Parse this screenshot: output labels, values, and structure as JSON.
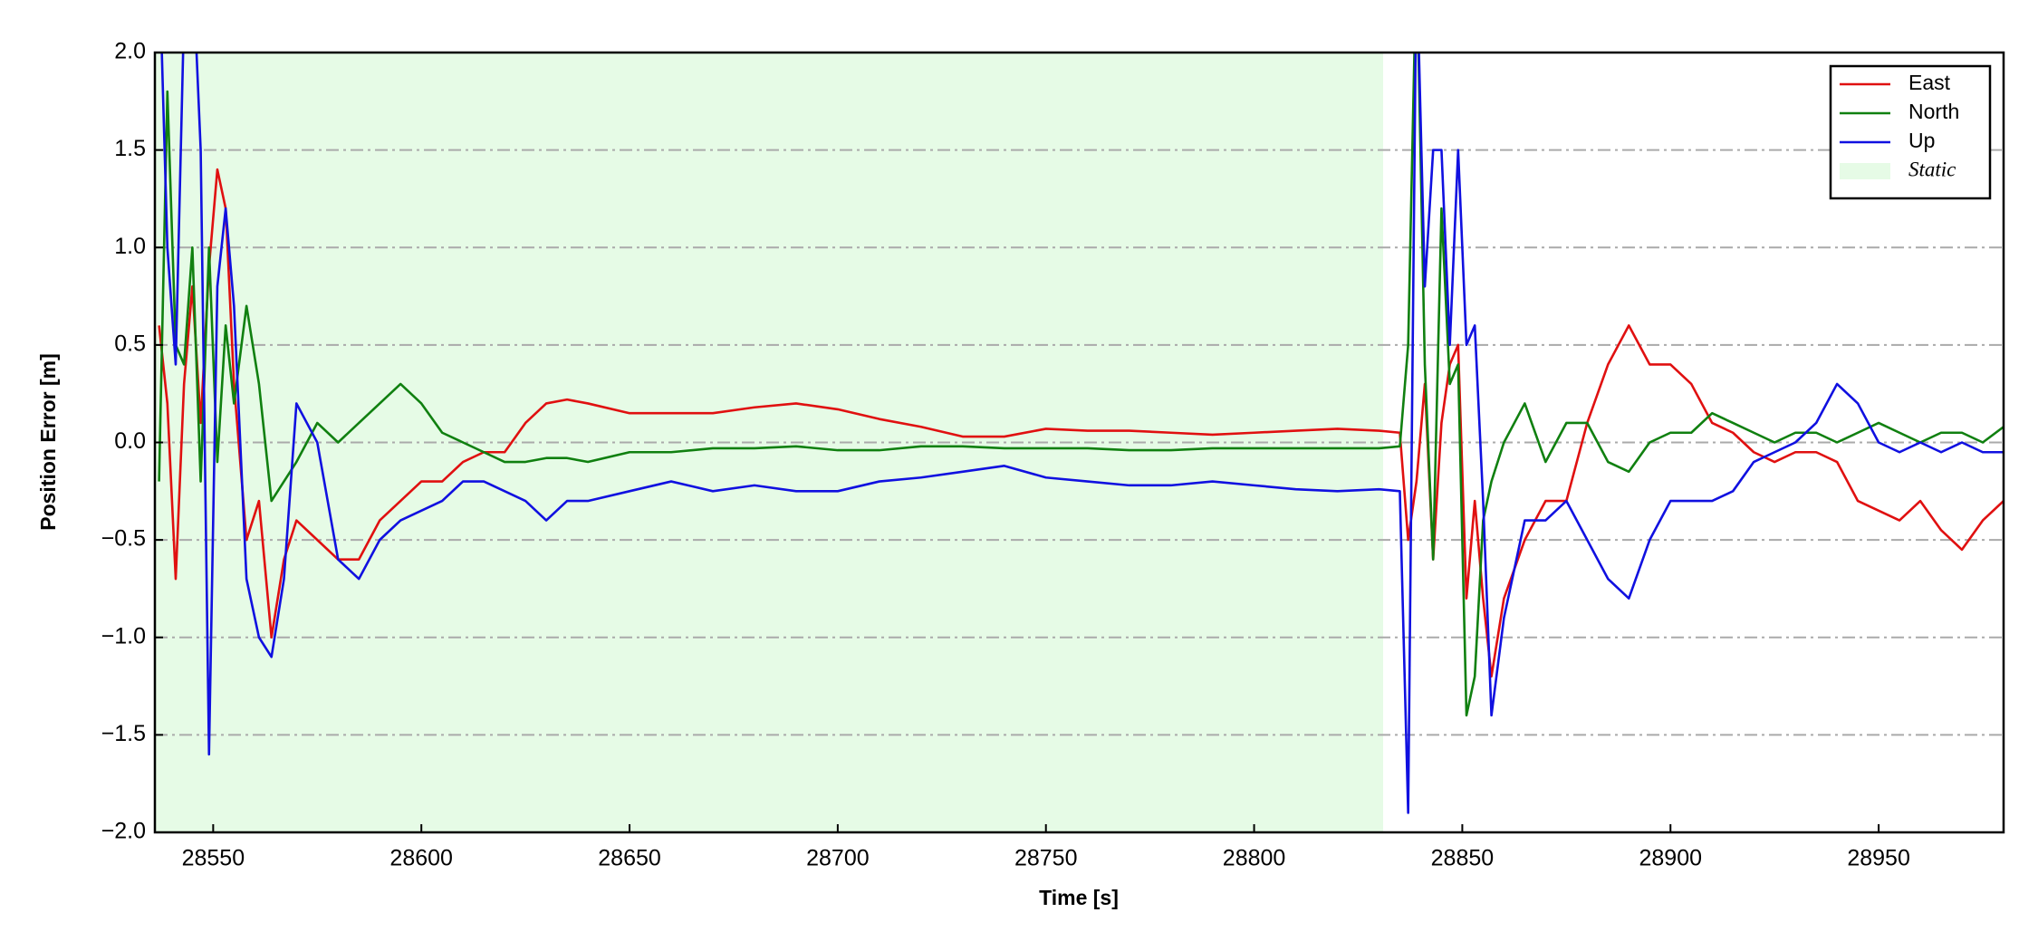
{
  "chart_data": {
    "type": "line",
    "xlabel": "Time [s]",
    "ylabel": "Position Error [m]",
    "x": [
      28537,
      28539,
      28541,
      28543,
      28545,
      28547,
      28549,
      28551,
      28553,
      28555,
      28558,
      28561,
      28564,
      28567,
      28570,
      28575,
      28580,
      28585,
      28590,
      28595,
      28600,
      28605,
      28610,
      28615,
      28620,
      28625,
      28630,
      28635,
      28640,
      28650,
      28660,
      28670,
      28680,
      28690,
      28700,
      28710,
      28720,
      28730,
      28740,
      28750,
      28760,
      28770,
      28780,
      28790,
      28800,
      28810,
      28820,
      28830,
      28835,
      28837,
      28839,
      28841,
      28843,
      28845,
      28847,
      28849,
      28851,
      28853,
      28855,
      28857,
      28860,
      28865,
      28870,
      28875,
      28880,
      28885,
      28890,
      28895,
      28900,
      28905,
      28910,
      28915,
      28920,
      28925,
      28930,
      28935,
      28940,
      28945,
      28950,
      28955,
      28960,
      28965,
      28970,
      28975,
      28980
    ],
    "series": [
      {
        "name": "East",
        "color": "#e01010",
        "values": [
          0.6,
          0.2,
          -0.7,
          0.3,
          0.8,
          0.1,
          0.9,
          1.4,
          1.2,
          0.3,
          -0.5,
          -0.3,
          -1.0,
          -0.6,
          -0.4,
          -0.5,
          -0.6,
          -0.6,
          -0.4,
          -0.3,
          -0.2,
          -0.2,
          -0.1,
          -0.05,
          -0.05,
          0.1,
          0.2,
          0.22,
          0.2,
          0.15,
          0.15,
          0.15,
          0.18,
          0.2,
          0.17,
          0.12,
          0.08,
          0.03,
          0.03,
          0.07,
          0.06,
          0.06,
          0.05,
          0.04,
          0.05,
          0.06,
          0.07,
          0.06,
          0.05,
          -0.5,
          -0.2,
          0.3,
          -0.6,
          0.1,
          0.4,
          0.5,
          -0.8,
          -0.3,
          -0.8,
          -1.2,
          -0.8,
          -0.5,
          -0.3,
          -0.3,
          0.1,
          0.4,
          0.6,
          0.4,
          0.4,
          0.3,
          0.1,
          0.05,
          -0.05,
          -0.1,
          -0.05,
          -0.05,
          -0.1,
          -0.3,
          -0.35,
          -0.4,
          -0.3,
          -0.45,
          -0.55,
          -0.4,
          -0.3
        ]
      },
      {
        "name": "North",
        "color": "#108010",
        "values": [
          -0.2,
          1.8,
          0.5,
          0.4,
          1.0,
          -0.2,
          1.0,
          -0.1,
          0.6,
          0.2,
          0.7,
          0.3,
          -0.3,
          -0.2,
          -0.1,
          0.1,
          0.0,
          0.1,
          0.2,
          0.3,
          0.2,
          0.05,
          0.0,
          -0.05,
          -0.1,
          -0.1,
          -0.08,
          -0.08,
          -0.1,
          -0.05,
          -0.05,
          -0.03,
          -0.03,
          -0.02,
          -0.04,
          -0.04,
          -0.02,
          -0.02,
          -0.03,
          -0.03,
          -0.03,
          -0.04,
          -0.04,
          -0.03,
          -0.03,
          -0.03,
          -0.03,
          -0.03,
          -0.02,
          0.5,
          2.5,
          0.4,
          -0.6,
          1.2,
          0.3,
          0.4,
          -1.4,
          -1.2,
          -0.4,
          -0.2,
          0.0,
          0.2,
          -0.1,
          0.1,
          0.1,
          -0.1,
          -0.15,
          0.0,
          0.05,
          0.05,
          0.15,
          0.1,
          0.05,
          0.0,
          0.05,
          0.05,
          0.0,
          0.05,
          0.1,
          0.05,
          0.0,
          0.05,
          0.05,
          0.0,
          0.08
        ]
      },
      {
        "name": "Up",
        "color": "#1010e0",
        "values": [
          2.5,
          1.0,
          0.4,
          2.2,
          2.5,
          1.5,
          -1.6,
          0.8,
          1.2,
          0.7,
          -0.7,
          -1.0,
          -1.1,
          -0.7,
          0.2,
          0.0,
          -0.6,
          -0.7,
          -0.5,
          -0.4,
          -0.35,
          -0.3,
          -0.2,
          -0.2,
          -0.25,
          -0.3,
          -0.4,
          -0.3,
          -0.3,
          -0.25,
          -0.2,
          -0.25,
          -0.22,
          -0.25,
          -0.25,
          -0.2,
          -0.18,
          -0.15,
          -0.12,
          -0.18,
          -0.2,
          -0.22,
          -0.22,
          -0.2,
          -0.22,
          -0.24,
          -0.25,
          -0.24,
          -0.25,
          -1.9,
          2.5,
          0.8,
          1.5,
          1.5,
          0.5,
          1.5,
          0.5,
          0.6,
          -0.3,
          -1.4,
          -0.9,
          -0.4,
          -0.4,
          -0.3,
          -0.5,
          -0.7,
          -0.8,
          -0.5,
          -0.3,
          -0.3,
          -0.3,
          -0.25,
          -0.1,
          -0.05,
          0.0,
          0.1,
          0.3,
          0.2,
          0.0,
          -0.05,
          0.0,
          -0.05,
          0.0,
          -0.05,
          -0.05
        ]
      }
    ],
    "shaded_region": {
      "name": "Static",
      "xmin": 28536,
      "xmax": 28831,
      "color": "#e6fbe6"
    },
    "xlim": [
      28536,
      28980
    ],
    "xticks": [
      28550,
      28600,
      28650,
      28700,
      28750,
      28800,
      28850,
      28900,
      28950
    ],
    "ylim": [
      -2,
      2
    ],
    "yticks": [
      {
        "value": -2,
        "label": "−2.0"
      },
      {
        "value": -1.5,
        "label": "−1.5"
      },
      {
        "value": -1,
        "label": "−1.0"
      },
      {
        "value": -0.5,
        "label": "−0.5"
      },
      {
        "value": 0,
        "label": "0.0"
      },
      0.5,
      {
        "value": 1,
        "label": "1.0"
      },
      1.5,
      {
        "value": 2,
        "label": "2.0"
      }
    ],
    "grid": true,
    "legend_position": "upper right"
  }
}
